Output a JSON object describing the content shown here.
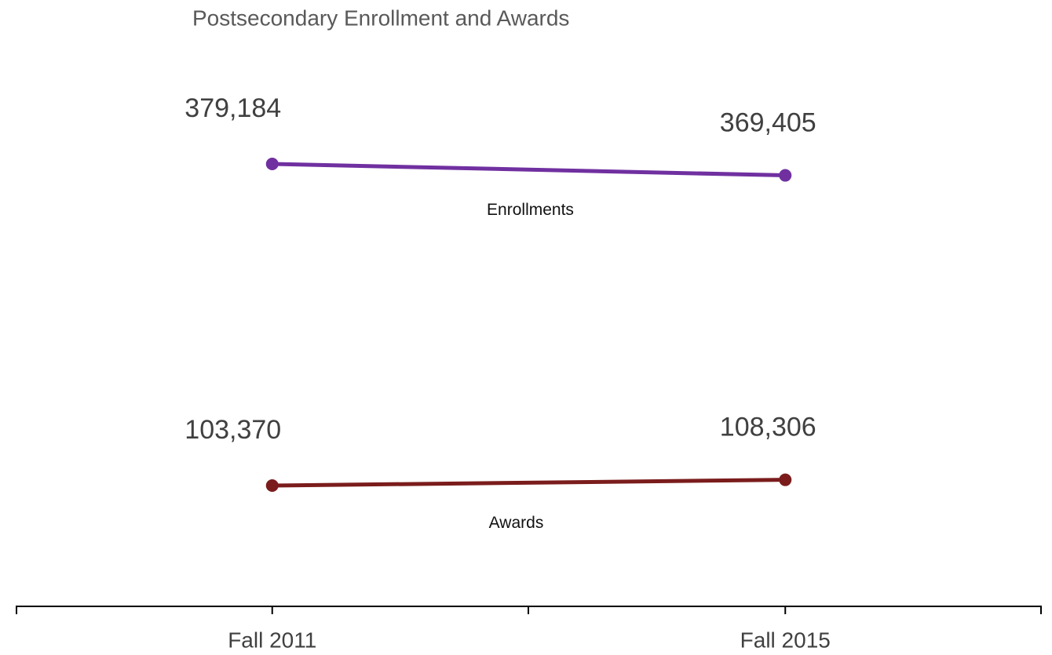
{
  "chart_data": {
    "type": "line",
    "title": "Postsecondary Enrollment and Awards",
    "categories": [
      "Fall 2011",
      "Fall 2015"
    ],
    "series": [
      {
        "name": "Enrollments",
        "color": "#7030a0",
        "values": [
          379184,
          369405
        ],
        "value_labels": [
          "379,184",
          "369,405"
        ]
      },
      {
        "name": "Awards",
        "color": "#7b1c1c",
        "values": [
          103370,
          108306
        ],
        "value_labels": [
          "103,370",
          "108,306"
        ]
      }
    ]
  }
}
